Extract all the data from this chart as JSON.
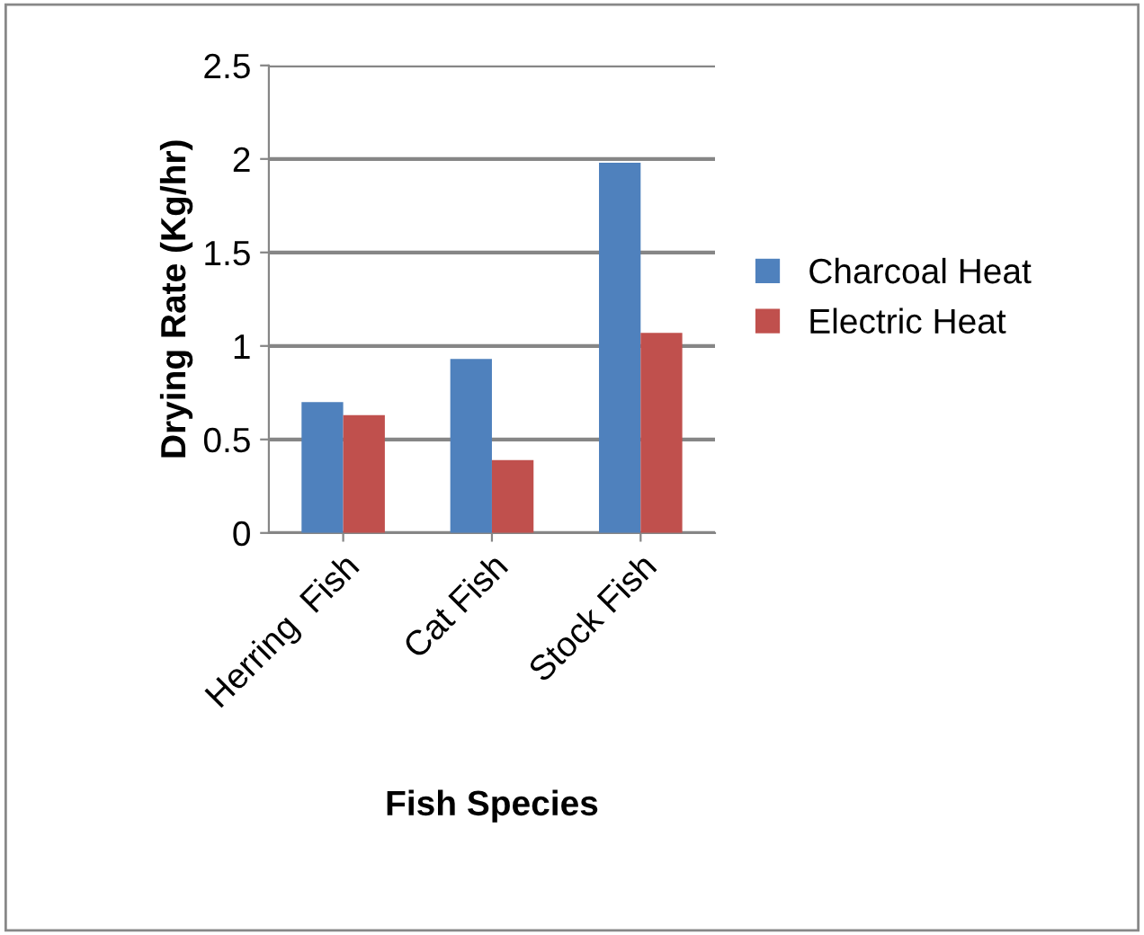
{
  "chart_data": {
    "type": "bar",
    "xlabel": "Fish Species",
    "ylabel": "Drying Rate (Kg/hr)",
    "categories": [
      "Herring  Fish",
      "Cat Fish",
      "Stock Fish"
    ],
    "series": [
      {
        "name": "Charcoal Heat",
        "color": "#4f81bd",
        "values": [
          0.7,
          0.93,
          1.98
        ]
      },
      {
        "name": "Electric Heat",
        "color": "#c0504d",
        "values": [
          0.63,
          0.39,
          1.07
        ]
      }
    ],
    "ylim": [
      0,
      2.5
    ],
    "yticks": [
      0,
      0.5,
      1,
      1.5,
      2,
      2.5
    ],
    "grid": "y",
    "legend": "right"
  }
}
